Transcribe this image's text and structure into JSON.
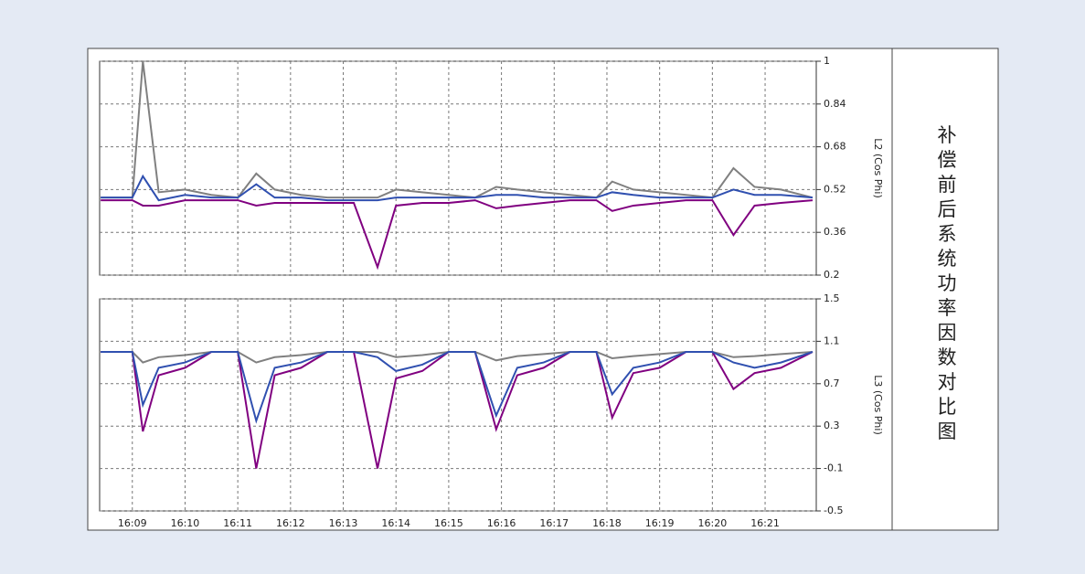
{
  "title": "补偿前后系统功率因数对比图",
  "chart_data": [
    {
      "type": "line",
      "y_label": "L2 (Cos Phi)",
      "x": [
        8.4,
        9.0,
        9.2,
        9.5,
        10.0,
        10.5,
        11.0,
        11.35,
        11.7,
        12.2,
        12.7,
        13.2,
        13.65,
        14.0,
        14.5,
        15.0,
        15.5,
        15.9,
        16.3,
        16.8,
        17.3,
        17.8,
        18.1,
        18.5,
        19.0,
        19.5,
        20.0,
        20.4,
        20.8,
        21.3,
        21.9
      ],
      "xlim": [
        8.38,
        21.97
      ],
      "ylim": [
        0.2,
        1
      ],
      "yticks": [
        0.2,
        0.36,
        0.52,
        0.68,
        0.84,
        1
      ],
      "grid": true,
      "series": [
        {
          "color": "#808080",
          "values": [
            0.49,
            0.49,
            1.0,
            0.51,
            0.52,
            0.5,
            0.49,
            0.58,
            0.52,
            0.5,
            0.49,
            0.49,
            0.49,
            0.52,
            0.51,
            0.5,
            0.49,
            0.53,
            0.52,
            0.51,
            0.5,
            0.49,
            0.55,
            0.52,
            0.51,
            0.5,
            0.49,
            0.6,
            0.53,
            0.52,
            0.49
          ]
        },
        {
          "color": "#800080",
          "values": [
            0.48,
            0.48,
            0.46,
            0.46,
            0.48,
            0.48,
            0.48,
            0.46,
            0.47,
            0.47,
            0.47,
            0.47,
            0.23,
            0.46,
            0.47,
            0.47,
            0.48,
            0.45,
            0.46,
            0.47,
            0.48,
            0.48,
            0.44,
            0.46,
            0.47,
            0.48,
            0.48,
            0.35,
            0.46,
            0.47,
            0.48
          ]
        },
        {
          "color": "#3050b0",
          "values": [
            0.49,
            0.49,
            0.57,
            0.48,
            0.5,
            0.49,
            0.49,
            0.54,
            0.49,
            0.49,
            0.48,
            0.48,
            0.48,
            0.49,
            0.49,
            0.49,
            0.49,
            0.5,
            0.5,
            0.49,
            0.49,
            0.49,
            0.51,
            0.5,
            0.49,
            0.49,
            0.49,
            0.52,
            0.5,
            0.5,
            0.49
          ]
        }
      ]
    },
    {
      "type": "line",
      "y_label": "L3 (Cos Phi)",
      "x": [
        8.4,
        9.0,
        9.2,
        9.5,
        10.0,
        10.5,
        11.0,
        11.35,
        11.7,
        12.2,
        12.7,
        13.2,
        13.65,
        14.0,
        14.5,
        15.0,
        15.5,
        15.9,
        16.3,
        16.8,
        17.3,
        17.8,
        18.1,
        18.5,
        19.0,
        19.5,
        20.0,
        20.4,
        20.8,
        21.3,
        21.9
      ],
      "xlim": [
        8.38,
        21.97
      ],
      "xticks": [
        {
          "value": 9,
          "label": "16:09"
        },
        {
          "value": 10,
          "label": "16:10"
        },
        {
          "value": 11,
          "label": "16:11"
        },
        {
          "value": 12,
          "label": "16:12"
        },
        {
          "value": 13,
          "label": "16:13"
        },
        {
          "value": 14,
          "label": "16:14"
        },
        {
          "value": 15,
          "label": "16:15"
        },
        {
          "value": 16,
          "label": "16:16"
        },
        {
          "value": 17,
          "label": "16:17"
        },
        {
          "value": 18,
          "label": "16:18"
        },
        {
          "value": 19,
          "label": "16:19"
        },
        {
          "value": 20,
          "label": "16:20"
        },
        {
          "value": 21,
          "label": "16:21"
        }
      ],
      "ylim": [
        -0.5,
        1.5
      ],
      "yticks": [
        -0.5,
        -0.1,
        0.3,
        0.7,
        1.1,
        1.5
      ],
      "grid": true,
      "series": [
        {
          "color": "#808080",
          "values": [
            1.0,
            1.0,
            0.9,
            0.95,
            0.97,
            1.0,
            1.0,
            0.9,
            0.95,
            0.97,
            1.0,
            1.0,
            1.0,
            0.95,
            0.97,
            1.0,
            1.0,
            0.92,
            0.96,
            0.98,
            1.0,
            1.0,
            0.94,
            0.96,
            0.98,
            1.0,
            1.0,
            0.95,
            0.96,
            0.98,
            1.0
          ]
        },
        {
          "color": "#800080",
          "values": [
            1.0,
            1.0,
            0.25,
            0.78,
            0.85,
            1.0,
            1.0,
            -0.1,
            0.78,
            0.85,
            1.0,
            1.0,
            -0.1,
            0.75,
            0.82,
            1.0,
            1.0,
            0.27,
            0.78,
            0.85,
            1.0,
            1.0,
            0.38,
            0.8,
            0.85,
            1.0,
            1.0,
            0.65,
            0.8,
            0.85,
            1.0
          ]
        },
        {
          "color": "#3050b0",
          "values": [
            1.0,
            1.0,
            0.5,
            0.85,
            0.9,
            1.0,
            1.0,
            0.35,
            0.85,
            0.9,
            1.0,
            1.0,
            0.95,
            0.82,
            0.88,
            1.0,
            1.0,
            0.4,
            0.85,
            0.9,
            1.0,
            1.0,
            0.6,
            0.85,
            0.9,
            1.0,
            1.0,
            0.9,
            0.85,
            0.9,
            1.0
          ]
        }
      ]
    }
  ]
}
